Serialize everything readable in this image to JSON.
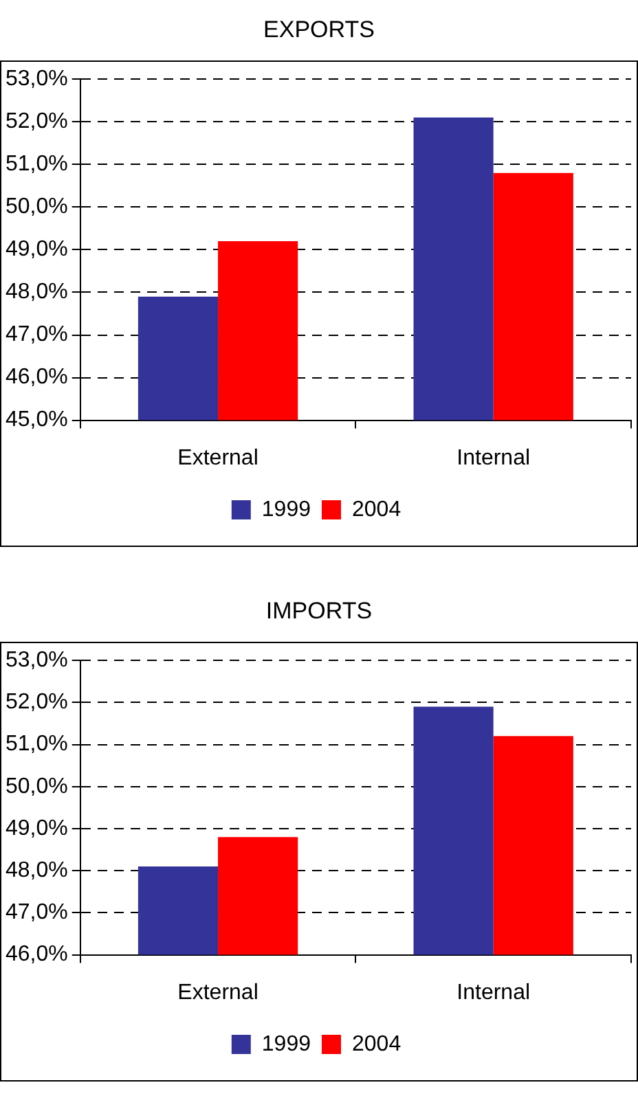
{
  "chart_data": [
    {
      "type": "bar",
      "title": "EXPORTS",
      "categories": [
        "External",
        "Internal"
      ],
      "series": [
        {
          "name": "1999",
          "color": "#333399",
          "values": [
            47.9,
            52.1
          ]
        },
        {
          "name": "2004",
          "color": "#ff0000",
          "values": [
            49.2,
            50.8
          ]
        }
      ],
      "ylim": [
        45,
        53
      ],
      "yticks": [
        {
          "value": 45,
          "label": "45,0%"
        },
        {
          "value": 46,
          "label": "46,0%"
        },
        {
          "value": 47,
          "label": "47,0%"
        },
        {
          "value": 48,
          "label": "48,0%"
        },
        {
          "value": 49,
          "label": "49,0%"
        },
        {
          "value": 50,
          "label": "50,0%"
        },
        {
          "value": 51,
          "label": "51,0%"
        },
        {
          "value": 52,
          "label": "52,0%"
        },
        {
          "value": 53,
          "label": "53,0%"
        }
      ],
      "grid": "y",
      "legend": "bottom"
    },
    {
      "type": "bar",
      "title": "IMPORTS",
      "categories": [
        "External",
        "Internal"
      ],
      "series": [
        {
          "name": "1999",
          "color": "#333399",
          "values": [
            48.1,
            51.9
          ]
        },
        {
          "name": "2004",
          "color": "#ff0000",
          "values": [
            48.8,
            51.2
          ]
        }
      ],
      "ylim": [
        46,
        53
      ],
      "yticks": [
        {
          "value": 46,
          "label": "46,0%"
        },
        {
          "value": 47,
          "label": "47,0%"
        },
        {
          "value": 48,
          "label": "48,0%"
        },
        {
          "value": 49,
          "label": "49,0%"
        },
        {
          "value": 50,
          "label": "50,0%"
        },
        {
          "value": 51,
          "label": "51,0%"
        },
        {
          "value": 52,
          "label": "52,0%"
        },
        {
          "value": 53,
          "label": "53,0%"
        }
      ],
      "grid": "y",
      "legend": "bottom"
    }
  ]
}
